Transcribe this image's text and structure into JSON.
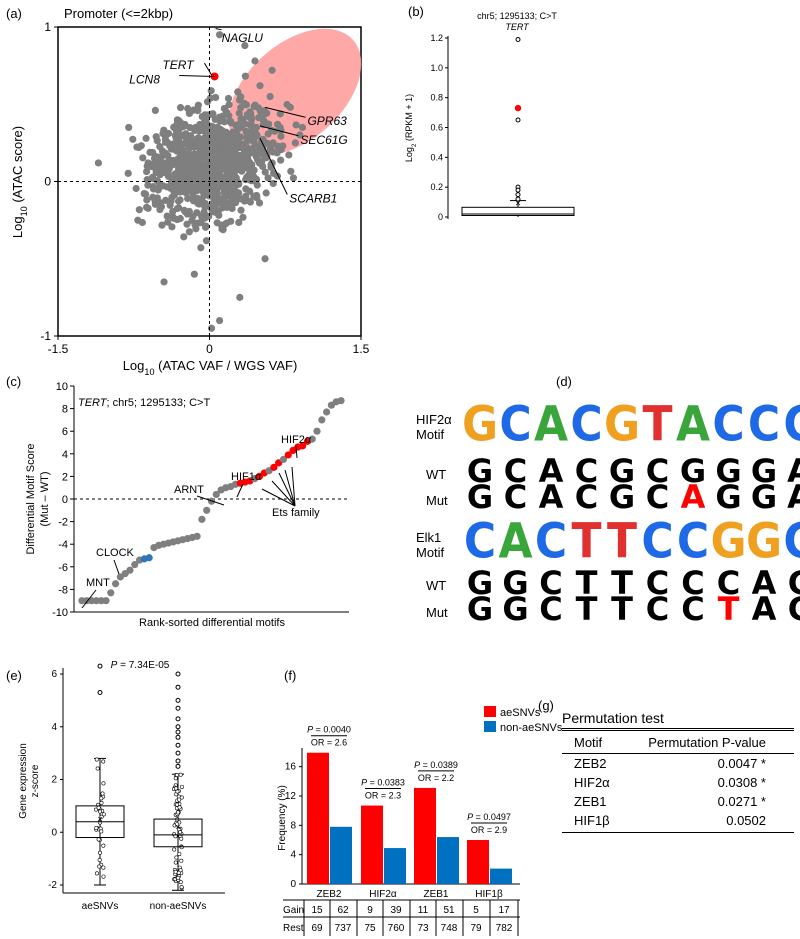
{
  "panels": {
    "a": {
      "letter": "(a)",
      "title": "Promoter (<=2kbp)"
    },
    "b": {
      "letter": "(b)"
    },
    "c": {
      "letter": "(c)"
    },
    "d": {
      "letter": "(d)"
    },
    "e": {
      "letter": "(e)"
    },
    "f": {
      "letter": "(f)"
    },
    "g": {
      "letter": "(g)"
    }
  },
  "chart_data": [
    {
      "id": "a",
      "type": "scatter",
      "title": "Promoter (<=2kbp)",
      "xlabel": "Log10 (ATAC VAF / WGS VAF)",
      "ylabel": "Log10 (ATAC score)",
      "xlim": [
        -1.5,
        1.5
      ],
      "ylim": [
        -1,
        1
      ],
      "xticks": [
        "-1.5",
        "0",
        "1.5"
      ],
      "yticks": [
        "-1",
        "0",
        "1"
      ],
      "highlight": {
        "name": "TERT",
        "x": 0.05,
        "y": 0.68,
        "color": "#ff0000"
      },
      "region_color": "#ff9999",
      "labels": [
        {
          "text": "NAGLU",
          "x": 0.12,
          "y": 0.93
        },
        {
          "text": "TERT",
          "x": -0.07,
          "y": 0.74
        },
        {
          "text": "LCN8",
          "x": -0.28,
          "y": 0.66
        },
        {
          "text": "GPR63",
          "x": 0.97,
          "y": 0.39
        },
        {
          "text": "SEC61G",
          "x": 0.9,
          "y": 0.27
        },
        {
          "text": "SCARB1",
          "x": 0.79,
          "y": -0.11
        }
      ]
    },
    {
      "id": "b",
      "type": "box",
      "title": "chr5; 1295133; C>T",
      "subtitle": "TERT",
      "ylabel": "Log2 (RPKM + 1)",
      "ylim": [
        0,
        1.2
      ],
      "yticks": [
        "0",
        "0.2",
        "0.4",
        "0.6",
        "0.8",
        "1.0",
        "1.2"
      ],
      "box": {
        "q1": 0.01,
        "median": 0.02,
        "q3": 0.065,
        "whisker_low": 0.0,
        "whisker_high": 0.11,
        "mean": 0.09
      },
      "outliers": [
        1.19,
        0.65,
        0.2,
        0.18,
        0.15,
        0.12
      ],
      "highlight": {
        "y": 0.73,
        "color": "#ff0000"
      }
    },
    {
      "id": "c",
      "type": "scatter",
      "title": "TERT; chr5; 1295133; C>T",
      "xlabel": "Rank-sorted differential motifs",
      "ylabel": "Differential Motif Score (Mut – WT)",
      "ylim": [
        -10,
        10
      ],
      "yticks": [
        "10",
        "8",
        "6",
        "4",
        "2",
        "0",
        "-2",
        "-4",
        "-6",
        "-8",
        "-10"
      ],
      "values": [
        -9.0,
        -9.0,
        -9.0,
        -9.0,
        -9.0,
        -9.0,
        -8.3,
        -7.5,
        -6.9,
        -6.6,
        -6.3,
        -5.8,
        -5.4,
        -5.3,
        -5.2,
        -4.3,
        -4.1,
        -4.0,
        -3.9,
        -3.8,
        -3.7,
        -3.6,
        -3.5,
        -3.4,
        -3.3,
        -1.8,
        -1.0,
        -0.2,
        0.4,
        0.8,
        1.0,
        1.1,
        1.3,
        1.4,
        1.5,
        1.6,
        1.8,
        2.0,
        2.3,
        2.5,
        2.8,
        3.2,
        3.5,
        3.9,
        4.3,
        4.6,
        4.7,
        5.1,
        5.3,
        6.0,
        7.0,
        7.7,
        8.3,
        8.6,
        8.7
      ],
      "red_ranks": [
        33,
        34,
        35,
        37,
        38,
        40,
        41,
        43,
        44,
        45,
        46,
        47
      ],
      "blue_ranks": [
        13,
        14
      ],
      "annotations": [
        {
          "text": "HIF2α"
        },
        {
          "text": "HIF1α"
        },
        {
          "text": "ARNT"
        },
        {
          "text": "Ets family"
        },
        {
          "text": "CLOCK"
        },
        {
          "text": "MNT"
        }
      ]
    },
    {
      "id": "e",
      "type": "box",
      "title": "P = 7.34E-05",
      "ylabel": "Gene expression z-score",
      "ylim": [
        -2,
        6
      ],
      "yticks": [
        "6",
        "4",
        "2",
        "0",
        "-2"
      ],
      "categories": [
        "aeSNVs",
        "non-aeSNVs"
      ],
      "boxes": [
        {
          "name": "aeSNVs",
          "q1": -0.2,
          "median": 0.4,
          "q3": 1.0,
          "whisker_low": -2.0,
          "whisker_high": 2.8,
          "mean": 0.5,
          "outliers_high": [
            6.3,
            5.3
          ]
        },
        {
          "name": "non-aeSNVs",
          "q1": -0.55,
          "median": -0.1,
          "q3": 0.5,
          "whisker_low": -2.2,
          "whisker_high": 2.2,
          "mean": 0.2,
          "outliers_high": [
            6.0,
            5.5,
            5.0,
            4.7,
            4.3,
            4.0,
            3.8,
            3.6,
            3.3,
            3.0,
            2.7,
            2.5
          ]
        }
      ]
    },
    {
      "id": "f",
      "type": "bar",
      "ylabel": "Frequency (%)",
      "ylim": [
        0,
        18
      ],
      "yticks": [
        "0",
        "4",
        "8",
        "12",
        "16"
      ],
      "categories": [
        "ZEB2",
        "HIF2α",
        "ZEB1",
        "HIF1β"
      ],
      "series": [
        {
          "name": "aeSNVs",
          "color": "#ff0000",
          "values": [
            17.9,
            10.7,
            13.1,
            6.0
          ]
        },
        {
          "name": "non-aeSNVs",
          "color": "#0070c0",
          "values": [
            7.8,
            4.9,
            6.4,
            2.1
          ]
        }
      ],
      "stats": [
        {
          "p": "P = 0.0040",
          "or": "OR = 2.6"
        },
        {
          "p": "P = 0.0383",
          "or": "OR = 2.3"
        },
        {
          "p": "P = 0.0389",
          "or": "OR = 2.2"
        },
        {
          "p": "P = 0.0497",
          "or": "OR = 2.9"
        }
      ],
      "table": {
        "rows": [
          "Gain",
          "Rest"
        ],
        "gain": [
          [
            "15",
            "62"
          ],
          [
            "9",
            "39"
          ],
          [
            "11",
            "51"
          ],
          [
            "5",
            "17"
          ]
        ],
        "rest": [
          [
            "69",
            "737"
          ],
          [
            "75",
            "760"
          ],
          [
            "73",
            "748"
          ],
          [
            "79",
            "782"
          ]
        ]
      }
    }
  ],
  "motifs": [
    {
      "title": "HIF2α",
      "title2": "Motif",
      "logo": [
        "G",
        "C",
        "A",
        "C",
        "G",
        "T",
        "A",
        "C",
        "C",
        "C"
      ],
      "wt_label": "WT",
      "mut_label": "Mut",
      "wt": [
        "G",
        "C",
        "A",
        "C",
        "G",
        "C",
        "G",
        "G",
        "G",
        "A"
      ],
      "mut": [
        "G",
        "C",
        "A",
        "C",
        "G",
        "C",
        "A",
        "G",
        "G",
        "A"
      ],
      "mut_pos": 6
    },
    {
      "title": "Elk1",
      "title2": "Motif",
      "logo": [
        "C",
        "A",
        "C",
        "T",
        "T",
        "C",
        "C",
        "G",
        "G",
        "C"
      ],
      "wt_label": "WT",
      "mut_label": "Mut",
      "wt": [
        "G",
        "G",
        "C",
        "T",
        "T",
        "C",
        "C",
        "C",
        "A",
        "C"
      ],
      "mut": [
        "G",
        "G",
        "C",
        "T",
        "T",
        "C",
        "C",
        "T",
        "A",
        "C"
      ],
      "mut_pos": 7
    }
  ],
  "permutation": {
    "title": "Permutation test",
    "col1": "Motif",
    "col2": "Permutation P-value",
    "rows": [
      {
        "motif": "ZEB2",
        "p": "0.0047 *"
      },
      {
        "motif": "HIF2α",
        "p": "0.0308 *"
      },
      {
        "motif": "ZEB1",
        "p": "0.0271 *"
      },
      {
        "motif": "HIF1β",
        "p": "0.0502"
      }
    ]
  }
}
